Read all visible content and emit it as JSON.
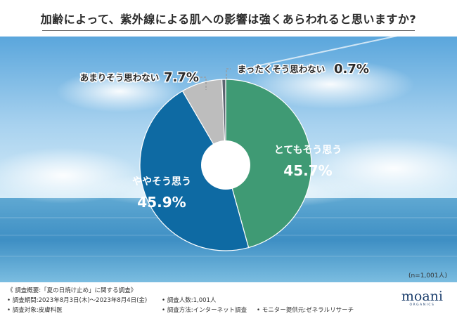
{
  "title": "加齢によって、紫外線による肌への影響は強くあらわれると思いますか?",
  "sample": "(n=1,001人)",
  "chart_data": {
    "type": "pie",
    "variant": "donut",
    "unit": "%",
    "slices": [
      {
        "label": "とてもそう思う",
        "value": 45.7,
        "color": "#3f9a74"
      },
      {
        "label": "ややそう思う",
        "value": 45.9,
        "color": "#0e6aa3"
      },
      {
        "label": "あまりそう思わない",
        "value": 7.7,
        "color": "#bdbdbd"
      },
      {
        "label": "まったくそう思わない",
        "value": 0.7,
        "color": "#5b6470"
      }
    ],
    "value_labels": [
      "45.7%",
      "45.9%",
      "7.7%",
      "0.7%"
    ]
  },
  "footer": {
    "heading": "《 調査概要:「夏の日焼け止め」に関する調査》",
    "period": "• 調査期間:2023年8月3日(木)〜2023年8月4日(金)",
    "count": "• 調査人数:1,001人",
    "target": "• 調査対象:皮膚科医",
    "method": "• 調査方法:インターネット調査",
    "provider": "• モニター提供元:ゼネラルリサーチ"
  },
  "logo": {
    "name": "moani",
    "sub": "ORGANICS"
  }
}
